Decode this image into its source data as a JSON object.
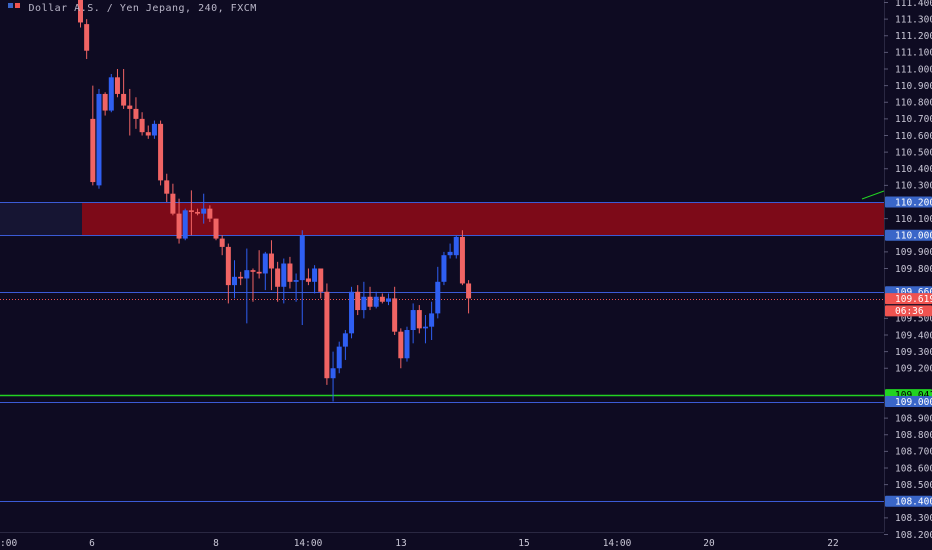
{
  "header": {
    "symbol_title": "Dollar A.S. / Yen Jepang, 240, FXCM"
  },
  "colors": {
    "background": "#0e0b22",
    "axis_background": "#0e0b22",
    "axis_text": "#c9c7d6",
    "up_candle": "#2f5ff2",
    "down_candle": "#f06464",
    "line_blue": "#3b5bd6",
    "line_green": "#22d322",
    "supply_zone": "#7d0a18",
    "price_badge_red": "#ef5350",
    "price_badge_blue": "#3a66c8",
    "price_badge_green": "#22d322"
  },
  "chart_data": {
    "type": "candlestick",
    "title": "Dollar A.S. / Yen Jepang, 240, FXCM",
    "y_axis": {
      "min": 108.2,
      "max": 111.4,
      "ticks": [
        "108.200",
        "108.300",
        "108.400",
        "108.500",
        "108.600",
        "108.700",
        "108.800",
        "108.900",
        "109.000",
        "109.100",
        "109.200",
        "109.300",
        "109.400",
        "109.500",
        "109.600",
        "109.700",
        "109.800",
        "109.900",
        "110.000",
        "110.100",
        "110.200",
        "110.300",
        "110.400",
        "110.500",
        "110.600",
        "110.700",
        "110.800",
        "110.900",
        "111.000",
        "111.100",
        "111.200",
        "111.300",
        "111.400"
      ],
      "highlighted_labels": [
        {
          "value": "110.200",
          "kind": "blue"
        },
        {
          "value": "110.000",
          "kind": "blue"
        },
        {
          "value": "109.660",
          "kind": "blue"
        },
        {
          "value": "109.619",
          "kind": "red"
        },
        {
          "value": "06:36",
          "kind": "red",
          "at": 109.545
        },
        {
          "value": "109.041",
          "kind": "green"
        },
        {
          "value": "109.000",
          "kind": "blue"
        },
        {
          "value": "108.400",
          "kind": "blue"
        }
      ]
    },
    "x_axis": {
      "labels": [
        {
          "text": ":00",
          "pos": 0
        },
        {
          "text": "6",
          "pos": 92
        },
        {
          "text": "8",
          "pos": 216
        },
        {
          "text": "14:00",
          "pos": 308
        },
        {
          "text": "13",
          "pos": 401
        },
        {
          "text": "15",
          "pos": 524
        },
        {
          "text": "14:00",
          "pos": 617
        },
        {
          "text": "20",
          "pos": 709
        },
        {
          "text": "22",
          "pos": 833
        }
      ]
    },
    "horizontal_lines": [
      {
        "value": 110.2,
        "color": "blue"
      },
      {
        "value": 110.0,
        "color": "blue"
      },
      {
        "value": 109.66,
        "color": "blue"
      },
      {
        "value": 109.619,
        "color": "red",
        "style": "dotted"
      },
      {
        "value": 109.041,
        "color": "green"
      },
      {
        "value": 109.0,
        "color": "blue"
      },
      {
        "value": 108.4,
        "color": "blue"
      }
    ],
    "supply_zone": {
      "top": 110.2,
      "bottom": 110.0
    },
    "candles": [
      {
        "o": 111.43,
        "h": 111.47,
        "l": 111.25,
        "c": 111.28
      },
      {
        "o": 111.27,
        "h": 111.3,
        "l": 111.06,
        "c": 111.11
      },
      {
        "o": 110.7,
        "h": 110.9,
        "l": 110.3,
        "c": 110.32
      },
      {
        "o": 110.3,
        "h": 110.88,
        "l": 110.28,
        "c": 110.85
      },
      {
        "o": 110.85,
        "h": 110.86,
        "l": 110.72,
        "c": 110.75
      },
      {
        "o": 110.75,
        "h": 110.97,
        "l": 110.74,
        "c": 110.95
      },
      {
        "o": 110.95,
        "h": 111.0,
        "l": 110.83,
        "c": 110.85
      },
      {
        "o": 110.85,
        "h": 111.0,
        "l": 110.76,
        "c": 110.78
      },
      {
        "o": 110.78,
        "h": 110.88,
        "l": 110.6,
        "c": 110.76
      },
      {
        "o": 110.76,
        "h": 110.83,
        "l": 110.64,
        "c": 110.7
      },
      {
        "o": 110.7,
        "h": 110.74,
        "l": 110.6,
        "c": 110.62
      },
      {
        "o": 110.62,
        "h": 110.66,
        "l": 110.58,
        "c": 110.6
      },
      {
        "o": 110.6,
        "h": 110.69,
        "l": 110.58,
        "c": 110.67
      },
      {
        "o": 110.67,
        "h": 110.69,
        "l": 110.3,
        "c": 110.33
      },
      {
        "o": 110.33,
        "h": 110.37,
        "l": 110.2,
        "c": 110.25
      },
      {
        "o": 110.25,
        "h": 110.31,
        "l": 110.12,
        "c": 110.13
      },
      {
        "o": 110.13,
        "h": 110.22,
        "l": 109.95,
        "c": 109.98
      },
      {
        "o": 109.98,
        "h": 110.16,
        "l": 109.97,
        "c": 110.15
      },
      {
        "o": 110.15,
        "h": 110.27,
        "l": 110.0,
        "c": 110.14
      },
      {
        "o": 110.14,
        "h": 110.16,
        "l": 110.12,
        "c": 110.13
      },
      {
        "o": 110.13,
        "h": 110.25,
        "l": 110.07,
        "c": 110.16
      },
      {
        "o": 110.16,
        "h": 110.18,
        "l": 110.08,
        "c": 110.1
      },
      {
        "o": 110.1,
        "h": 110.1,
        "l": 109.97,
        "c": 109.98
      },
      {
        "o": 109.98,
        "h": 110.0,
        "l": 109.88,
        "c": 109.93
      },
      {
        "o": 109.93,
        "h": 109.95,
        "l": 109.59,
        "c": 109.7
      },
      {
        "o": 109.7,
        "h": 109.85,
        "l": 109.62,
        "c": 109.75
      },
      {
        "o": 109.75,
        "h": 109.78,
        "l": 109.7,
        "c": 109.74
      },
      {
        "o": 109.74,
        "h": 109.92,
        "l": 109.47,
        "c": 109.79
      },
      {
        "o": 109.79,
        "h": 109.8,
        "l": 109.6,
        "c": 109.78
      },
      {
        "o": 109.78,
        "h": 109.91,
        "l": 109.74,
        "c": 109.77
      },
      {
        "o": 109.77,
        "h": 109.9,
        "l": 109.67,
        "c": 109.89
      },
      {
        "o": 109.89,
        "h": 109.97,
        "l": 109.67,
        "c": 109.8
      },
      {
        "o": 109.8,
        "h": 109.84,
        "l": 109.6,
        "c": 109.69
      },
      {
        "o": 109.69,
        "h": 109.86,
        "l": 109.59,
        "c": 109.83
      },
      {
        "o": 109.83,
        "h": 109.87,
        "l": 109.68,
        "c": 109.72
      },
      {
        "o": 109.72,
        "h": 109.77,
        "l": 109.6,
        "c": 109.73
      },
      {
        "o": 109.73,
        "h": 110.03,
        "l": 109.46,
        "c": 110.0
      },
      {
        "o": 109.74,
        "h": 109.8,
        "l": 109.7,
        "c": 109.72
      },
      {
        "o": 109.72,
        "h": 109.82,
        "l": 109.65,
        "c": 109.8
      },
      {
        "o": 109.8,
        "h": 109.8,
        "l": 109.62,
        "c": 109.66
      },
      {
        "o": 109.66,
        "h": 109.71,
        "l": 109.1,
        "c": 109.14
      },
      {
        "o": 109.14,
        "h": 109.3,
        "l": 109.0,
        "c": 109.2
      },
      {
        "o": 109.2,
        "h": 109.36,
        "l": 109.17,
        "c": 109.33
      },
      {
        "o": 109.33,
        "h": 109.43,
        "l": 109.25,
        "c": 109.41
      },
      {
        "o": 109.41,
        "h": 109.69,
        "l": 109.38,
        "c": 109.66
      },
      {
        "o": 109.66,
        "h": 109.7,
        "l": 109.52,
        "c": 109.55
      },
      {
        "o": 109.55,
        "h": 109.72,
        "l": 109.5,
        "c": 109.63
      },
      {
        "o": 109.63,
        "h": 109.69,
        "l": 109.55,
        "c": 109.57
      },
      {
        "o": 109.57,
        "h": 109.66,
        "l": 109.56,
        "c": 109.63
      },
      {
        "o": 109.63,
        "h": 109.65,
        "l": 109.59,
        "c": 109.6
      },
      {
        "o": 109.6,
        "h": 109.65,
        "l": 109.58,
        "c": 109.62
      },
      {
        "o": 109.62,
        "h": 109.69,
        "l": 109.4,
        "c": 109.42
      },
      {
        "o": 109.42,
        "h": 109.44,
        "l": 109.2,
        "c": 109.26
      },
      {
        "o": 109.26,
        "h": 109.45,
        "l": 109.24,
        "c": 109.43
      },
      {
        "o": 109.43,
        "h": 109.59,
        "l": 109.35,
        "c": 109.55
      },
      {
        "o": 109.55,
        "h": 109.58,
        "l": 109.41,
        "c": 109.44
      },
      {
        "o": 109.44,
        "h": 109.52,
        "l": 109.35,
        "c": 109.45
      },
      {
        "o": 109.45,
        "h": 109.6,
        "l": 109.37,
        "c": 109.53
      },
      {
        "o": 109.53,
        "h": 109.81,
        "l": 109.5,
        "c": 109.72
      },
      {
        "o": 109.72,
        "h": 109.9,
        "l": 109.7,
        "c": 109.88
      },
      {
        "o": 109.88,
        "h": 109.95,
        "l": 109.86,
        "c": 109.9
      },
      {
        "o": 109.88,
        "h": 110.0,
        "l": 109.86,
        "c": 109.99
      },
      {
        "o": 109.99,
        "h": 110.03,
        "l": 109.7,
        "c": 109.71
      },
      {
        "o": 109.71,
        "h": 109.73,
        "l": 109.53,
        "c": 109.62
      }
    ]
  }
}
